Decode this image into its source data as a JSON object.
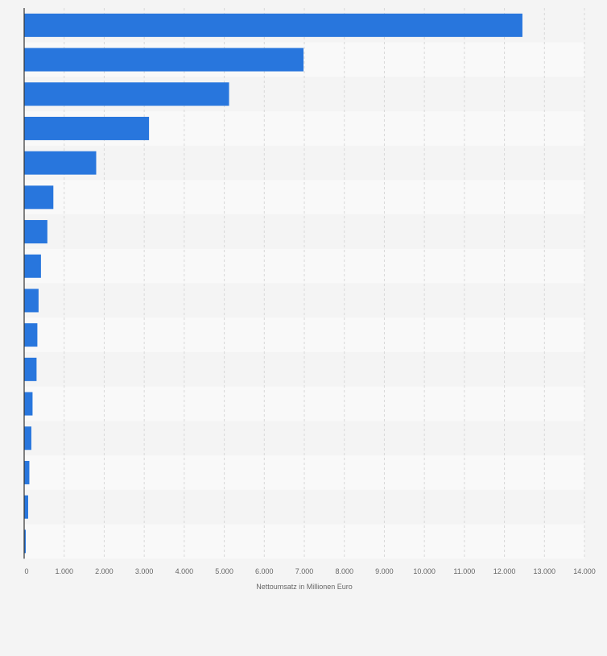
{
  "chart_data": {
    "type": "bar",
    "orientation": "horizontal",
    "categories": [
      "",
      "",
      "",
      "",
      "",
      "",
      "",
      "",
      "",
      "",
      "",
      "",
      "",
      "",
      "",
      ""
    ],
    "values": [
      12450,
      6980,
      5120,
      3120,
      1800,
      730,
      580,
      420,
      360,
      330,
      310,
      210,
      180,
      130,
      100,
      40
    ],
    "xlabel": "Nettoumsatz in Millionen Euro",
    "ylabel": "",
    "xlim": [
      0,
      14000
    ],
    "x_ticks": [
      0,
      1000,
      2000,
      3000,
      4000,
      5000,
      6000,
      7000,
      8000,
      9000,
      10000,
      11000,
      12000,
      13000,
      14000
    ],
    "x_tick_labels": [
      "0",
      "1.000",
      "2.000",
      "3.000",
      "4.000",
      "5.000",
      "6.000",
      "7.000",
      "8.000",
      "9.000",
      "10.000",
      "11.000",
      "12.000",
      "13.000",
      "14.000"
    ],
    "grid": true,
    "legend": "none",
    "colors": {
      "bar": "#2876dd",
      "band_light": "#f9f9f9",
      "band_dark": "#f4f4f4",
      "grid": "#d8d8d8",
      "axis": "#333333",
      "text": "#666666"
    }
  }
}
